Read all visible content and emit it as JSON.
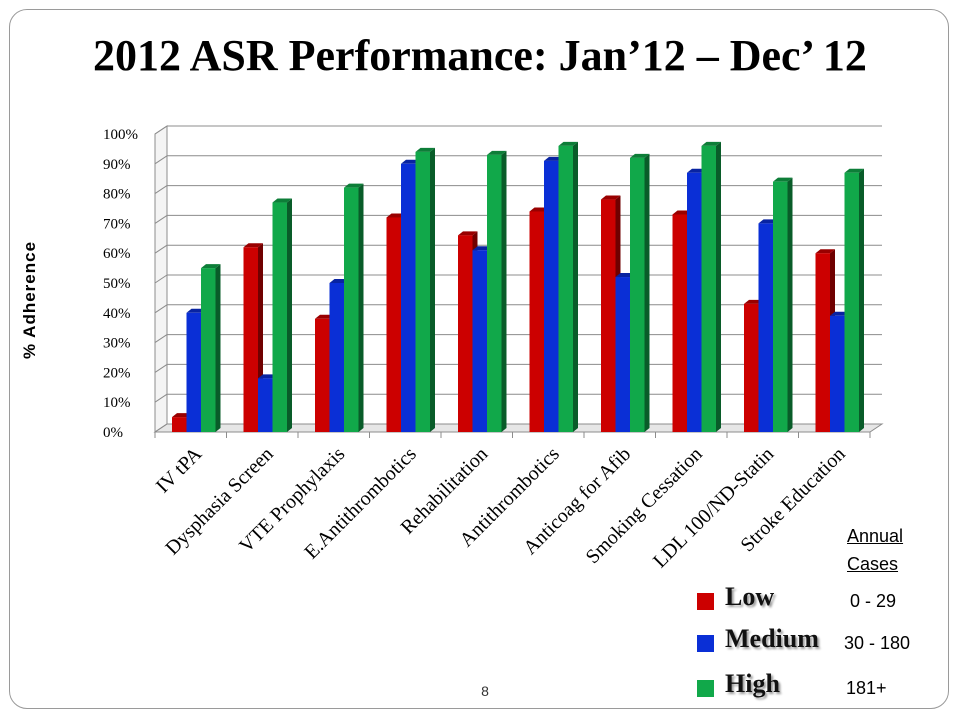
{
  "slide": {
    "title": "2012 ASR Performance: Jan’12 – Dec’ 12",
    "page_number": "8"
  },
  "chart_data": {
    "type": "bar",
    "title": "2012 ASR Performance: Jan’12 – Dec’ 12",
    "xlabel": "",
    "ylabel": "% Adherence",
    "ylim": [
      0,
      100
    ],
    "y_ticks": [
      "0%",
      "10%",
      "20%",
      "30%",
      "40%",
      "50%",
      "60%",
      "70%",
      "80%",
      "90%",
      "100%"
    ],
    "grid": true,
    "legend_position": "bottom-right",
    "categories": [
      "IV tPA",
      "Dysphasia Screen",
      "VTE Prophylaxis",
      "E.Antithrombotics",
      "Rehabilitation",
      "Antithrombotics",
      "Anticoag for Afib",
      "Smoking Cessation",
      "LDL 100/ND-Statin",
      "Stroke Education"
    ],
    "series": [
      {
        "name": "Low",
        "color": "#cc0000",
        "values": [
          5,
          62,
          38,
          72,
          66,
          74,
          78,
          73,
          43,
          60
        ]
      },
      {
        "name": "Medium",
        "color": "#0a2fd6",
        "values": [
          40,
          18,
          50,
          90,
          61,
          91,
          52,
          87,
          70,
          39
        ]
      },
      {
        "name": "High",
        "color": "#11a84a",
        "values": [
          55,
          77,
          82,
          94,
          93,
          96,
          92,
          96,
          84,
          87
        ]
      }
    ]
  },
  "legend": {
    "heading_line1": "Annual",
    "heading_line2": "Cases",
    "items": [
      {
        "label": "Low",
        "range": "0 - 29",
        "color": "#cc0000"
      },
      {
        "label": "Medium",
        "range": "30 - 180",
        "color": "#0a2fd6"
      },
      {
        "label": "High",
        "range": "181+",
        "color": "#11a84a"
      }
    ]
  }
}
